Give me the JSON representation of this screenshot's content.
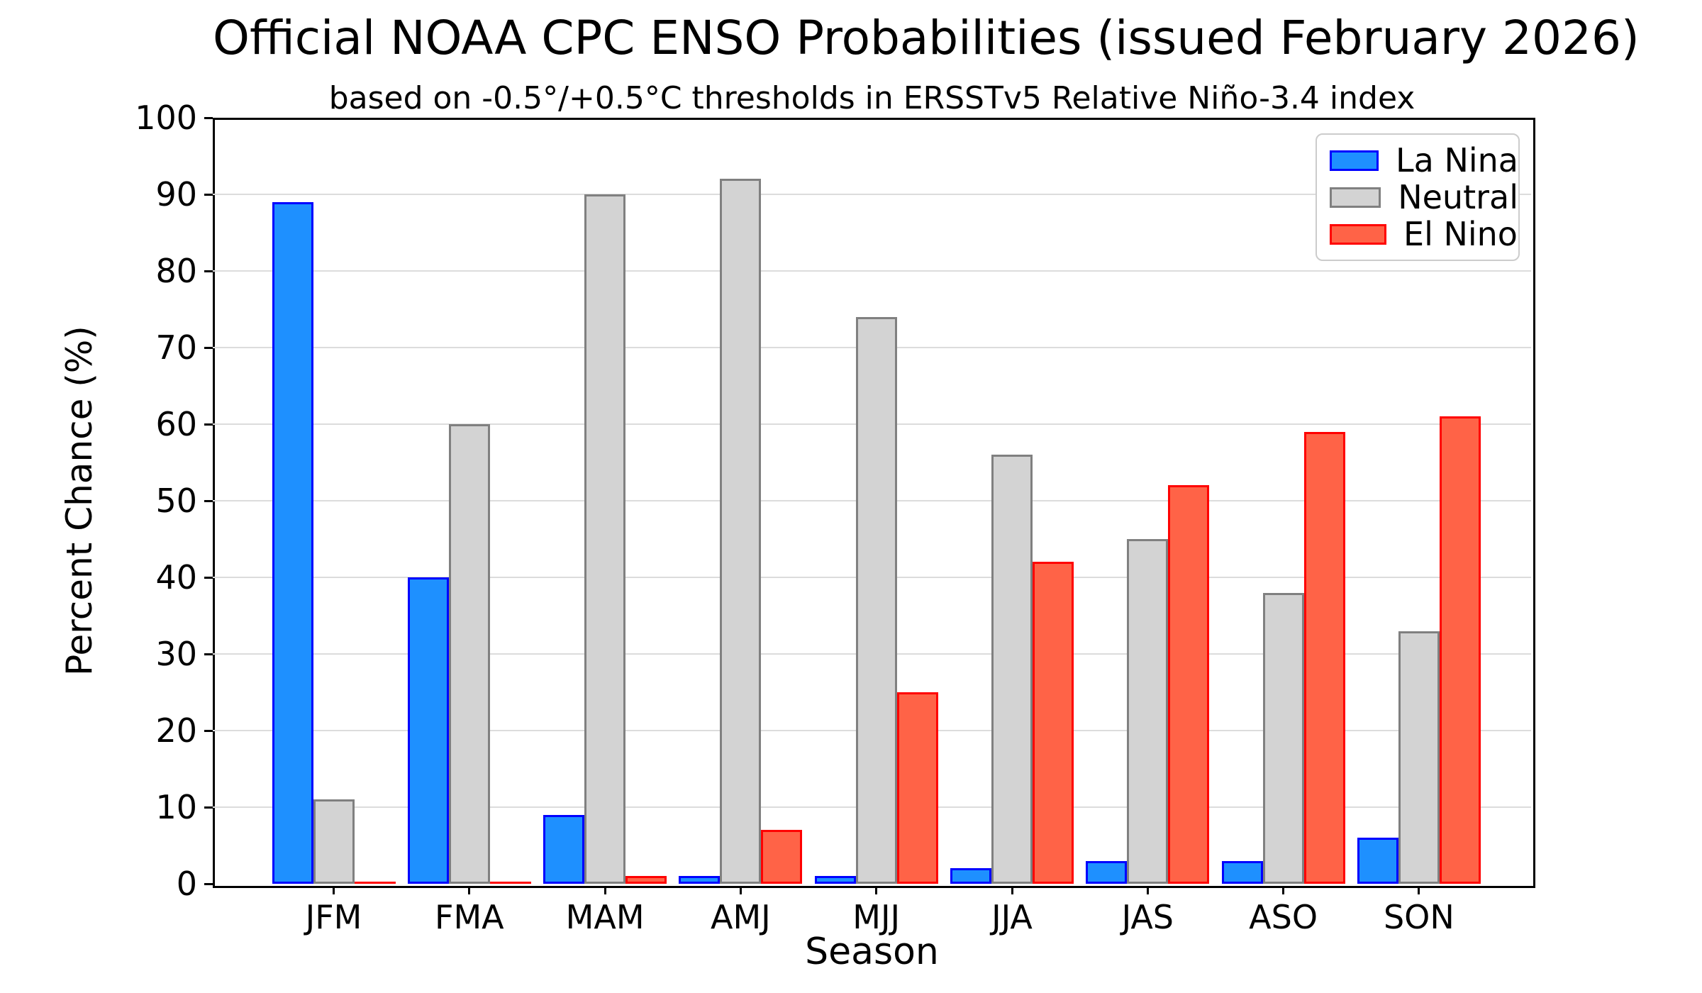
{
  "chart_data": {
    "type": "bar",
    "title": "Official NOAA CPC ENSO Probabilities (issued February 2026)",
    "subtitle": "based on -0.5°/+0.5°C thresholds in ERSSTv5 Relative Niño-3.4 index",
    "xlabel": "Season",
    "ylabel": "Percent Chance (%)",
    "ylim": [
      0,
      100
    ],
    "yticks": [
      0,
      10,
      20,
      30,
      40,
      50,
      60,
      70,
      80,
      90,
      100
    ],
    "grid": true,
    "legend_position": "upper right",
    "categories": [
      "JFM",
      "FMA",
      "MAM",
      "AMJ",
      "MJJ",
      "JJA",
      "JAS",
      "ASO",
      "SON"
    ],
    "series": [
      {
        "name": "La Nina",
        "color": "#1E90FF",
        "edge_color": "#0000FF",
        "values": [
          89,
          40,
          9,
          1,
          1,
          2,
          3,
          3,
          6
        ]
      },
      {
        "name": "Neutral",
        "color": "#D3D3D3",
        "edge_color": "#808080",
        "values": [
          11,
          60,
          90,
          92,
          74,
          56,
          45,
          38,
          33
        ]
      },
      {
        "name": "El Nino",
        "color": "#FF6347",
        "edge_color": "#FF0000",
        "values": [
          0,
          0,
          1,
          7,
          25,
          42,
          52,
          59,
          61
        ]
      }
    ],
    "colors": {
      "grid": "#dcdcdc",
      "axis": "#000000",
      "background": "#ffffff"
    }
  }
}
